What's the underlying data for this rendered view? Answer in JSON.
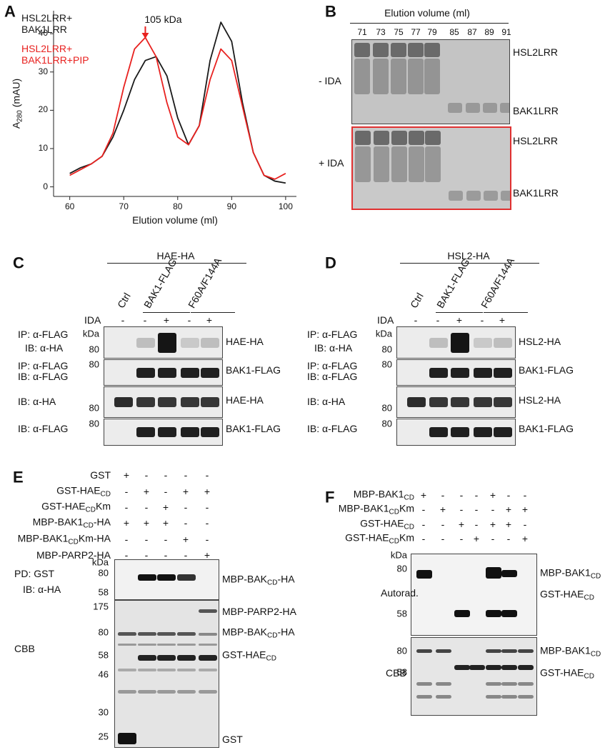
{
  "chart_data": {
    "type": "line",
    "xlabel": "Elution volume (ml)",
    "ylabel": [
      "A",
      "280",
      " (mAU)"
    ],
    "x": [
      60,
      62,
      64,
      66,
      68,
      70,
      72,
      74,
      76,
      78,
      80,
      82,
      84,
      86,
      88,
      90,
      92,
      94,
      96,
      98,
      100
    ],
    "series": [
      {
        "name": "HSL2LRR+ BAK1LRR",
        "color": "#1a1a1a",
        "values": [
          3.5,
          5,
          6,
          8,
          13,
          20,
          28,
          33,
          34,
          29,
          18,
          11,
          16,
          33,
          43,
          38,
          22,
          9,
          3,
          1.5,
          1
        ]
      },
      {
        "name": "HSL2LRR+ BAK1LRR+PIP",
        "color": "#e8211f",
        "values": [
          3,
          4.5,
          6,
          8,
          14,
          26,
          36,
          39,
          34,
          22,
          13,
          11,
          16,
          28,
          36,
          33,
          21,
          9,
          3,
          2,
          3.5
        ]
      }
    ],
    "annotation": {
      "text": "105 kDa",
      "x": 74
    },
    "xlim": [
      57,
      102
    ],
    "ylim": [
      -2.5,
      46
    ],
    "xticks": [
      60,
      70,
      80,
      90,
      100
    ],
    "yticks": [
      0,
      10,
      20,
      30,
      40
    ]
  },
  "panels": {
    "A": {
      "letter": "A"
    },
    "B": {
      "letter": "B",
      "title": "Elution volume (ml)",
      "lanes": [
        "71",
        "73",
        "75",
        "77",
        "79",
        "85",
        "87",
        "89",
        "91"
      ],
      "conditions": [
        "- IDA",
        "+ IDA"
      ],
      "bands": [
        "HSL2LRR",
        "BAK1LRR",
        "HSL2LRR",
        "BAK1LRR"
      ]
    },
    "C": {
      "letter": "C",
      "header": "HAE-HA",
      "groups": [
        "Ctrl",
        "BAK1-FLAG",
        "F60A/F144A"
      ],
      "ida_label": "IDA",
      "ida": [
        "-",
        "-",
        "+",
        "-",
        "+"
      ],
      "blots": [
        {
          "left": [
            "IP: α-FLAG",
            "IB: α-HA"
          ],
          "markers": [
            "kDa",
            "80"
          ],
          "right": "HAE-HA"
        },
        {
          "left": [
            "IP: α-FLAG",
            "IB: α-FLAG"
          ],
          "markers": [
            "80"
          ],
          "right": "BAK1-FLAG"
        },
        {
          "left": [
            "IB: α-HA"
          ],
          "markers": [
            "80"
          ],
          "right": "HAE-HA"
        },
        {
          "left": [
            "IB: α-FLAG"
          ],
          "markers": [
            "80"
          ],
          "right": "BAK1-FLAG"
        }
      ]
    },
    "D": {
      "letter": "D",
      "header": "HSL2-HA",
      "groups": [
        "Ctrl",
        "BAK1-FLAG",
        "F60A/F144A"
      ],
      "ida_label": "IDA",
      "ida": [
        "-",
        "-",
        "+",
        "-",
        "+"
      ],
      "blots": [
        {
          "left": [
            "IP: α-FLAG",
            "IB: α-HA"
          ],
          "markers": [
            "kDa",
            "80"
          ],
          "right": "HSL2-HA"
        },
        {
          "left": [
            "IP: α-FLAG",
            "IB: α-FLAG"
          ],
          "markers": [
            "80"
          ],
          "right": "BAK1-FLAG"
        },
        {
          "left": [
            "IB: α-HA"
          ],
          "markers": [
            "80"
          ],
          "right": "HSL2-HA"
        },
        {
          "left": [
            "IB: α-FLAG"
          ],
          "markers": [
            "80"
          ],
          "right": "BAK1-FLAG"
        }
      ]
    },
    "E": {
      "letter": "E",
      "conditions": [
        {
          "label": "GST",
          "signs": [
            "+",
            "-",
            "-",
            "-",
            "-"
          ]
        },
        {
          "label": [
            "GST-HAE",
            "CD"
          ],
          "signs": [
            "-",
            "+",
            "-",
            "+",
            "+"
          ]
        },
        {
          "label": [
            "GST-HAE",
            "CD",
            "Km"
          ],
          "signs": [
            "-",
            "-",
            "+",
            "-",
            "-"
          ]
        },
        {
          "label": [
            "MBP-BAK1",
            "CD",
            "-HA"
          ],
          "signs": [
            "+",
            "+",
            "+",
            "-",
            "-"
          ]
        },
        {
          "label": [
            "MBP-BAK1",
            "CD",
            "Km-HA"
          ],
          "signs": [
            "-",
            "-",
            "-",
            "+",
            "-"
          ]
        },
        {
          "label": "MBP-PARP2-HA",
          "signs": [
            "-",
            "-",
            "-",
            "-",
            "+"
          ]
        }
      ],
      "blots": [
        {
          "left": [
            "PD: GST",
            "IB: α-HA"
          ],
          "markers": [
            "kDa",
            "80",
            "58"
          ],
          "right": [
            [
              "MBP-BAK",
              "CD",
              "-HA"
            ]
          ]
        },
        {
          "left": [
            "CBB"
          ],
          "markers": [
            "175",
            "80",
            "58",
            "46",
            "30",
            "25"
          ],
          "right": [
            "MBP-PARP2-HA",
            [
              "MBP-BAK",
              "CD",
              "-HA"
            ],
            [
              "GST-HAE",
              "CD"
            ],
            "GST"
          ]
        }
      ]
    },
    "F": {
      "letter": "F",
      "conditions": [
        {
          "label": [
            "MBP-BAK1",
            "CD"
          ],
          "signs": [
            "+",
            "-",
            "-",
            "-",
            "+",
            "-",
            "-"
          ]
        },
        {
          "label": [
            "MBP-BAK1",
            "CD",
            "Km"
          ],
          "signs": [
            "-",
            "+",
            "-",
            "-",
            "-",
            "+",
            "+"
          ]
        },
        {
          "label": [
            "GST-HAE",
            "CD"
          ],
          "signs": [
            "-",
            "-",
            "+",
            "-",
            "+",
            "+",
            "-"
          ]
        },
        {
          "label": [
            "GST-HAE",
            "CD",
            "Km"
          ],
          "signs": [
            "-",
            "-",
            "-",
            "+",
            "-",
            "-",
            "+"
          ]
        }
      ],
      "blots": [
        {
          "left": [
            "Autorad."
          ],
          "markers": [
            "kDa",
            "80",
            "58"
          ],
          "right": [
            [
              "MBP-BAK1",
              "CD"
            ],
            [
              "GST-HAE",
              "CD"
            ]
          ]
        },
        {
          "left": [
            "CBB"
          ],
          "markers": [
            "80",
            "58"
          ],
          "right": [
            [
              "MBP-BAK1",
              "CD"
            ],
            [
              "GST-HAE",
              "CD"
            ]
          ]
        }
      ]
    }
  }
}
